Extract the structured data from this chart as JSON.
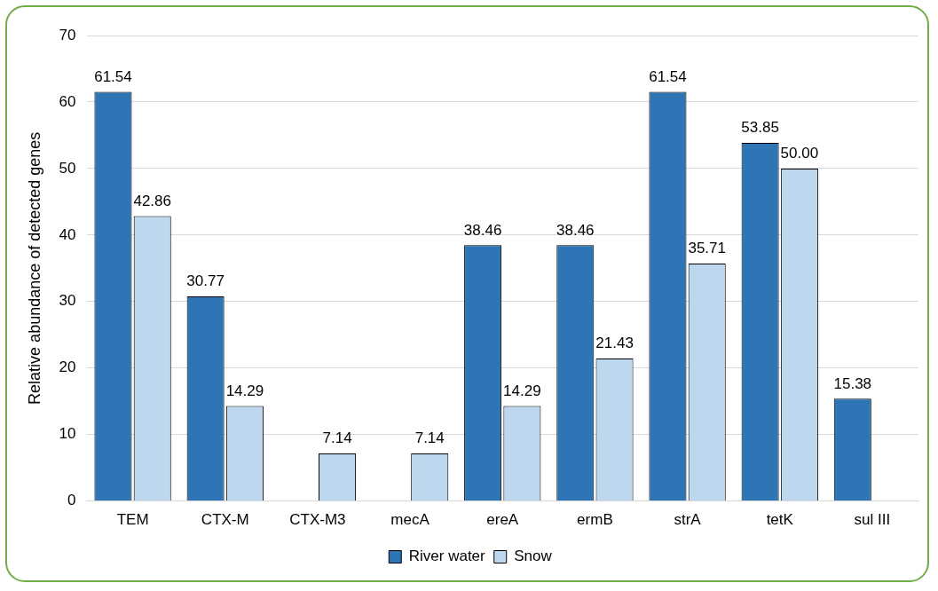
{
  "chart_data": {
    "type": "bar",
    "ylabel": "Relative abundance of detected genes",
    "categories": [
      "TEM",
      "CTX-M",
      "CTX-M3",
      "mecA",
      "ereA",
      "ermB",
      "strA",
      "tetK",
      "sul III"
    ],
    "series": [
      {
        "name": "River water",
        "color": "#2e75b6",
        "values": [
          61.54,
          30.77,
          null,
          null,
          38.46,
          38.46,
          61.54,
          53.85,
          15.38
        ],
        "value_labels": [
          "61.54",
          "30.77",
          null,
          null,
          "38.46",
          "38.46",
          "61.54",
          "53.85",
          "15.38"
        ]
      },
      {
        "name": "Snow",
        "color": "#bdd7ee",
        "values": [
          42.86,
          14.29,
          7.14,
          7.14,
          14.29,
          21.43,
          35.71,
          50.0,
          null
        ],
        "value_labels": [
          "42.86",
          "14.29",
          "7.14",
          "7.14",
          "14.29",
          "21.43",
          "35.71",
          "50.00",
          null
        ]
      }
    ],
    "ylim": [
      0,
      70
    ],
    "yticks": [
      0,
      10,
      20,
      30,
      40,
      50,
      60,
      70
    ],
    "grid": "y",
    "legend": "bottom"
  }
}
